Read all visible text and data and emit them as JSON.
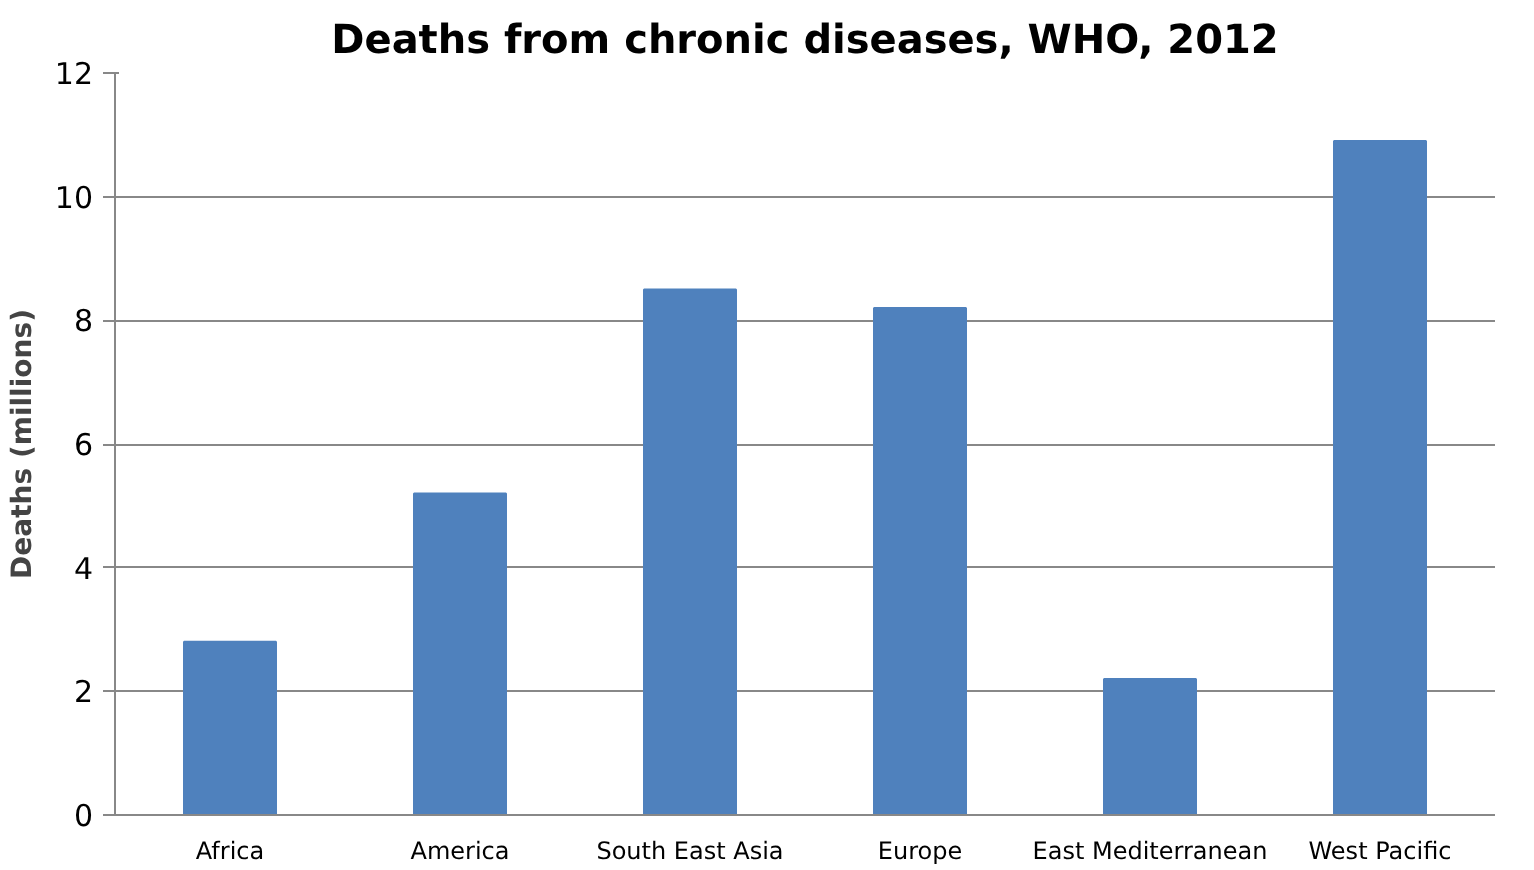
{
  "chart_data": {
    "type": "bar",
    "title": "Deaths from chronic diseases, WHO, 2012",
    "ylabel": "Deaths (millions)",
    "categories": [
      "Africa",
      "America",
      "South East Asia",
      "Europe",
      "East Mediterranean",
      "West Pacific"
    ],
    "values": [
      2.8,
      5.2,
      8.5,
      8.2,
      2.2,
      10.9
    ],
    "color": "#4f81bd",
    "ylim": [
      0,
      12
    ],
    "yticks": [
      0,
      2,
      4,
      6,
      8,
      10,
      12
    ],
    "grid": "y"
  }
}
